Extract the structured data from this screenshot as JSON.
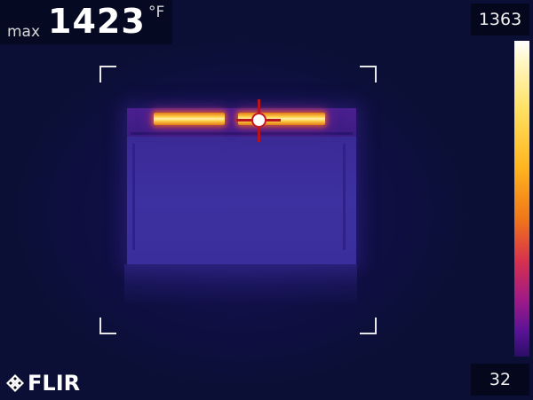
{
  "readout": {
    "label": "max",
    "value": "1423",
    "unit": "°F"
  },
  "scale": {
    "max": "1363",
    "min": "32"
  },
  "logo": {
    "text": "FLIR"
  },
  "colors": {
    "crosshair": "#b81420",
    "hot_element": "#ffd24a",
    "background": "#0b0f35"
  },
  "icons": {
    "crosshair": "spot-meter-crosshair-icon",
    "logo": "flir-diamond-logo-icon"
  }
}
